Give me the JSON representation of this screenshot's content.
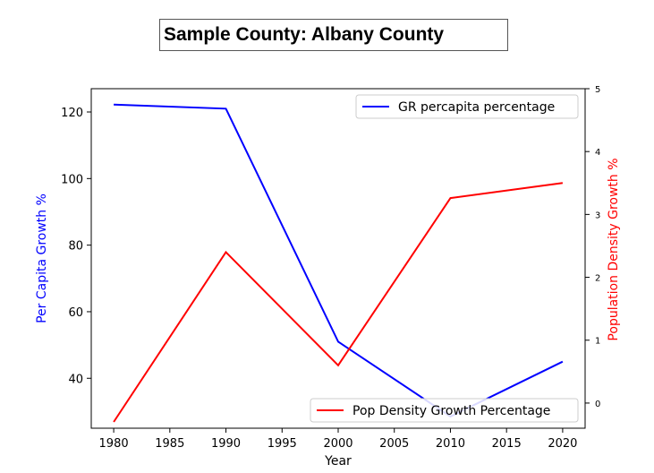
{
  "chart_data": {
    "type": "line",
    "title": "Sample County: Albany County",
    "xlabel": "Year",
    "x": [
      1980,
      1990,
      2000,
      2010,
      2020
    ],
    "xticks": [
      1980,
      1985,
      1990,
      1995,
      2000,
      2005,
      2010,
      2015,
      2020
    ],
    "xlim": [
      1978,
      2022
    ],
    "left_axis": {
      "label": "Per Capita Growth %",
      "color": "#0000ff",
      "ticks": [
        40,
        60,
        80,
        100,
        120
      ],
      "ylim": [
        25,
        127
      ]
    },
    "right_axis": {
      "label": "Population Density Growth %",
      "color": "#ff0000",
      "ticks": [
        0,
        1,
        2,
        3,
        4,
        5
      ],
      "ylim": [
        -0.4,
        5.0
      ]
    },
    "series": [
      {
        "name": "GR percapita percentage",
        "axis": "left",
        "color": "#0000ff",
        "values": [
          122.2,
          121.0,
          51.0,
          28.5,
          45.0
        ]
      },
      {
        "name": "Pop Density Growth Percentage",
        "axis": "right",
        "color": "#ff0000",
        "values": [
          -0.3,
          2.4,
          0.6,
          3.26,
          3.5
        ]
      }
    ],
    "legends": [
      {
        "series": 0,
        "placement": "upper-right"
      },
      {
        "series": 1,
        "placement": "lower-right"
      }
    ],
    "grid": false
  }
}
